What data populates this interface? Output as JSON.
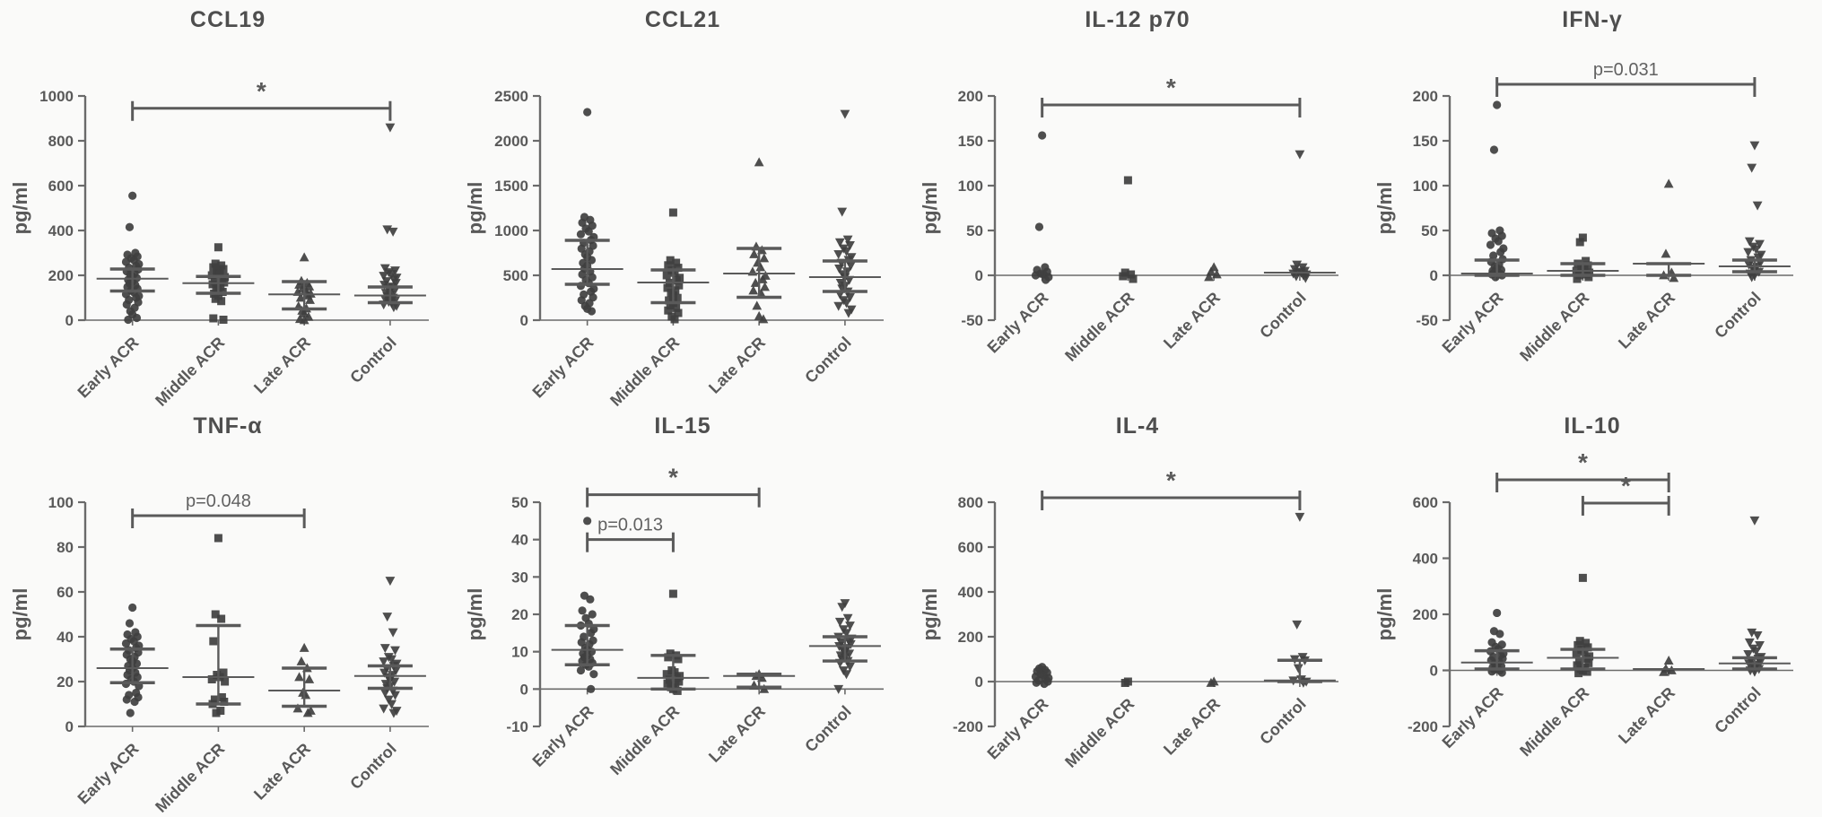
{
  "style": {
    "ink": "#6a6a6a",
    "text": "#595959",
    "marker": "#3f3f3f",
    "bracket": "#5a5a5a",
    "background": "#fafaf9"
  },
  "figure": {
    "ylabel": "pg/ml",
    "categories": [
      "Early ACR",
      "Middle ACR",
      "Late ACR",
      "Control"
    ]
  },
  "chart_data": [
    {
      "type": "scatter",
      "title": "CCL19",
      "ylabel": "pg/ml",
      "ylim": [
        0,
        1000
      ],
      "yticks": [
        0,
        200,
        400,
        600,
        800,
        1000
      ],
      "categories": [
        "Early ACR",
        "Middle ACR",
        "Late ACR",
        "Control"
      ],
      "groups": [
        {
          "name": "Early ACR",
          "marker": "circle",
          "mean": 185,
          "err_low": 130,
          "err_high": 228,
          "values": [
            555,
            415,
            300,
            292,
            284,
            276,
            268,
            260,
            250,
            242,
            234,
            226,
            218,
            210,
            202,
            195,
            188,
            180,
            172,
            164,
            156,
            148,
            140,
            132,
            124,
            116,
            108,
            100,
            90,
            80,
            70,
            55,
            40,
            25,
            10,
            2
          ]
        },
        {
          "name": "Middle ACR",
          "marker": "square",
          "mean": 165,
          "err_low": 120,
          "err_high": 195,
          "values": [
            325,
            252,
            244,
            236,
            228,
            220,
            210,
            200,
            192,
            184,
            176,
            168,
            160,
            150,
            142,
            134,
            126,
            118,
            108,
            95,
            85,
            8,
            2
          ]
        },
        {
          "name": "Late ACR",
          "marker": "triangle-up",
          "mean": 115,
          "err_low": 50,
          "err_high": 172,
          "values": [
            280,
            175,
            166,
            158,
            150,
            142,
            134,
            126,
            118,
            110,
            100,
            90,
            62,
            52,
            42,
            30,
            15,
            5,
            0
          ]
        },
        {
          "name": "Control",
          "marker": "triangle-down",
          "mean": 110,
          "err_low": 78,
          "err_high": 148,
          "values": [
            860,
            405,
            395,
            232,
            222,
            214,
            206,
            198,
            190,
            182,
            174,
            166,
            158,
            150,
            144,
            138,
            130,
            122,
            114,
            106,
            100,
            94,
            88,
            82,
            76,
            70,
            64,
            58
          ]
        }
      ],
      "significance": [
        {
          "from": 0,
          "to": 3,
          "y": 945,
          "label": "*"
        }
      ]
    },
    {
      "type": "scatter",
      "title": "CCL21",
      "ylabel": "pg/ml",
      "ylim": [
        0,
        2500
      ],
      "yticks": [
        0,
        500,
        1000,
        1500,
        2000,
        2500
      ],
      "categories": [
        "Early ACR",
        "Middle ACR",
        "Late ACR",
        "Control"
      ],
      "groups": [
        {
          "name": "Early ACR",
          "marker": "circle",
          "mean": 570,
          "err_low": 400,
          "err_high": 890,
          "values": [
            2320,
            1150,
            1118,
            1086,
            1054,
            1022,
            990,
            958,
            926,
            894,
            862,
            830,
            798,
            766,
            734,
            702,
            670,
            638,
            606,
            574,
            542,
            510,
            478,
            446,
            414,
            382,
            350,
            318,
            286,
            254,
            222,
            190,
            158,
            126,
            100
          ]
        },
        {
          "name": "Middle ACR",
          "marker": "square",
          "mean": 420,
          "err_low": 195,
          "err_high": 560,
          "values": [
            1200,
            668,
            640,
            612,
            584,
            556,
            528,
            500,
            472,
            444,
            416,
            388,
            360,
            332,
            304,
            276,
            248,
            220,
            192,
            164,
            136,
            108,
            80,
            40,
            10
          ]
        },
        {
          "name": "Late ACR",
          "marker": "triangle-up",
          "mean": 520,
          "err_low": 255,
          "err_high": 800,
          "values": [
            1760,
            820,
            780,
            735,
            690,
            640,
            590,
            540,
            495,
            455,
            415,
            370,
            330,
            295,
            160,
            45,
            10
          ]
        },
        {
          "name": "Control",
          "marker": "triangle-down",
          "mean": 480,
          "err_low": 320,
          "err_high": 660,
          "values": [
            2300,
            1210,
            900,
            868,
            836,
            800,
            768,
            736,
            704,
            672,
            640,
            608,
            576,
            544,
            512,
            480,
            448,
            416,
            384,
            352,
            320,
            288,
            256,
            224,
            192,
            158,
            120,
            80
          ]
        }
      ],
      "significance": []
    },
    {
      "type": "scatter",
      "title": "IL-12 p70",
      "ylabel": "pg/ml",
      "ylim": [
        -50,
        200
      ],
      "yticks": [
        -50,
        0,
        50,
        100,
        150,
        200
      ],
      "categories": [
        "Early ACR",
        "Middle ACR",
        "Late ACR",
        "Control"
      ],
      "groups": [
        {
          "name": "Early ACR",
          "marker": "circle",
          "mean": null,
          "err_low": null,
          "err_high": null,
          "values": [
            156,
            54,
            9,
            6,
            4,
            2,
            1,
            0,
            -2,
            -5
          ]
        },
        {
          "name": "Middle ACR",
          "marker": "square",
          "mean": null,
          "err_low": null,
          "err_high": null,
          "values": [
            106,
            3,
            1,
            -1,
            -4
          ]
        },
        {
          "name": "Late ACR",
          "marker": "triangle-up",
          "mean": null,
          "err_low": null,
          "err_high": null,
          "values": [
            9,
            4,
            1,
            -2
          ]
        },
        {
          "name": "Control",
          "marker": "triangle-down",
          "mean": 3,
          "err_low": null,
          "err_high": null,
          "values": [
            135,
            12,
            9,
            7,
            5,
            4,
            3,
            2,
            1,
            0,
            -1,
            -3
          ]
        }
      ],
      "significance": [
        {
          "from": 0,
          "to": 3,
          "y": 190,
          "label": "*"
        }
      ]
    },
    {
      "type": "scatter",
      "title": "IFN-γ",
      "ylabel": "pg/ml",
      "ylim": [
        -50,
        200
      ],
      "yticks": [
        -50,
        0,
        50,
        100,
        150,
        200
      ],
      "categories": [
        "Early ACR",
        "Middle ACR",
        "Late ACR",
        "Control"
      ],
      "groups": [
        {
          "name": "Early ACR",
          "marker": "circle",
          "mean": 2,
          "err_low": 0,
          "err_high": 17,
          "values": [
            190,
            140,
            50,
            47,
            44,
            41,
            38,
            34,
            30,
            26,
            22,
            18,
            15,
            12,
            10,
            8,
            6,
            5,
            4,
            3,
            2,
            1,
            0,
            -2
          ]
        },
        {
          "name": "Middle ACR",
          "marker": "square",
          "mean": 5,
          "err_low": 0,
          "err_high": 13,
          "values": [
            42,
            37,
            16,
            13,
            11,
            9,
            7,
            5,
            3,
            1,
            0,
            -2,
            -4
          ]
        },
        {
          "name": "Late ACR",
          "marker": "triangle-up",
          "mean": 13,
          "err_low": 0,
          "err_high": 13,
          "values": [
            102,
            24,
            3,
            0,
            -3
          ]
        },
        {
          "name": "Control",
          "marker": "triangle-down",
          "mean": 10,
          "err_low": 4,
          "err_high": 17,
          "values": [
            145,
            120,
            78,
            38,
            35,
            32,
            29,
            26,
            23,
            20,
            17,
            14,
            12,
            10,
            8,
            6,
            4,
            2,
            0,
            -2
          ]
        }
      ],
      "significance": [
        {
          "from": 0,
          "to": 3,
          "y": 213,
          "label": "p=0.031"
        }
      ]
    },
    {
      "type": "scatter",
      "title": "TNF-α",
      "ylabel": "pg/ml",
      "ylim": [
        0,
        100
      ],
      "yticks": [
        0,
        20,
        40,
        60,
        80,
        100
      ],
      "categories": [
        "Early ACR",
        "Middle ACR",
        "Late ACR",
        "Control"
      ],
      "groups": [
        {
          "name": "Early ACR",
          "marker": "circle",
          "mean": 26,
          "err_low": 19.5,
          "err_high": 34.5,
          "values": [
            53,
            46,
            42,
            41,
            40,
            39,
            38,
            37,
            36,
            35,
            34,
            33,
            32,
            31,
            30,
            29,
            28,
            27,
            26,
            25,
            24,
            23,
            22,
            21,
            20,
            19,
            18,
            15,
            14,
            13,
            12,
            11,
            6
          ]
        },
        {
          "name": "Middle ACR",
          "marker": "square",
          "mean": 22,
          "err_low": 10,
          "err_high": 45,
          "values": [
            84,
            50,
            48,
            38,
            24,
            23,
            22,
            21,
            20,
            13,
            12,
            11,
            10,
            7,
            6
          ]
        },
        {
          "name": "Late ACR",
          "marker": "triangle-up",
          "mean": 16,
          "err_low": 9,
          "err_high": 26,
          "values": [
            35,
            29,
            26,
            22,
            21,
            15,
            14,
            8,
            7,
            6
          ]
        },
        {
          "name": "Control",
          "marker": "triangle-down",
          "mean": 22.5,
          "err_low": 17,
          "err_high": 27,
          "values": [
            65,
            49,
            42,
            35,
            34,
            31,
            30,
            29,
            28,
            27,
            26,
            25,
            24,
            23,
            22,
            21,
            20,
            19,
            18,
            17,
            16,
            15,
            14,
            12,
            10,
            8,
            7,
            6
          ]
        }
      ],
      "significance": [
        {
          "from": 0,
          "to": 2,
          "y": 94,
          "label": "p=0.048"
        }
      ]
    },
    {
      "type": "scatter",
      "title": "IL-15",
      "ylabel": "pg/ml",
      "ylim": [
        -10,
        50
      ],
      "yticks": [
        -10,
        0,
        10,
        20,
        30,
        40,
        50
      ],
      "categories": [
        "Early ACR",
        "Middle ACR",
        "Late ACR",
        "Control"
      ],
      "groups": [
        {
          "name": "Early ACR",
          "marker": "circle",
          "mean": 10.5,
          "err_low": 6.5,
          "err_high": 17,
          "values": [
            45,
            25,
            24,
            21,
            20,
            19,
            17.5,
            17,
            16,
            15,
            14,
            13,
            12.5,
            12,
            11,
            10.5,
            10,
            9.5,
            9,
            8.5,
            8,
            7.5,
            7,
            6.5,
            6,
            5,
            4,
            0
          ]
        },
        {
          "name": "Middle ACR",
          "marker": "square",
          "mean": 3,
          "err_low": 0,
          "err_high": 9,
          "values": [
            25.5,
            9.5,
            9,
            8.5,
            8,
            5,
            4.5,
            4,
            3.5,
            3,
            2.5,
            2,
            1.5,
            1,
            0.5,
            0,
            -0.5
          ]
        },
        {
          "name": "Late ACR",
          "marker": "triangle-up",
          "mean": 3.5,
          "err_low": 0.5,
          "err_high": 4,
          "values": [
            4,
            3.5,
            3,
            1,
            0
          ]
        },
        {
          "name": "Control",
          "marker": "triangle-down",
          "mean": 11.5,
          "err_low": 7.5,
          "err_high": 14,
          "values": [
            23,
            22,
            19,
            18,
            17,
            16,
            15,
            14,
            13.5,
            13,
            12.5,
            12,
            11.5,
            11,
            10.5,
            10,
            9.5,
            9,
            8.5,
            8,
            7.5,
            7,
            6,
            5,
            4,
            0
          ]
        }
      ],
      "significance": [
        {
          "from": 0,
          "to": 2,
          "y": 52,
          "label": "*"
        },
        {
          "from": 0,
          "to": 1,
          "y": 40,
          "label": "p=0.013"
        }
      ]
    },
    {
      "type": "scatter",
      "title": "IL-4",
      "ylabel": "pg/ml",
      "ylim": [
        -200,
        800
      ],
      "yticks": [
        -200,
        0,
        200,
        400,
        600,
        800
      ],
      "categories": [
        "Early ACR",
        "Middle ACR",
        "Late ACR",
        "Control"
      ],
      "groups": [
        {
          "name": "Early ACR",
          "marker": "circle",
          "mean": null,
          "err_low": null,
          "err_high": null,
          "values": [
            65,
            58,
            52,
            46,
            40,
            34,
            28,
            22,
            16,
            10,
            5,
            0,
            -5,
            -10
          ]
        },
        {
          "name": "Middle ACR",
          "marker": "square",
          "mean": null,
          "err_low": null,
          "err_high": null,
          "values": [
            0,
            -6
          ]
        },
        {
          "name": "Late ACR",
          "marker": "triangle-up",
          "mean": null,
          "err_low": null,
          "err_high": null,
          "values": [
            0,
            -6
          ]
        },
        {
          "name": "Control",
          "marker": "triangle-down",
          "mean": 5,
          "err_low": 0,
          "err_high": 95,
          "values": [
            735,
            255,
            110,
            100,
            95,
            60,
            10,
            5,
            0,
            -5
          ]
        }
      ],
      "significance": [
        {
          "from": 0,
          "to": 3,
          "y": 820,
          "label": "*"
        }
      ]
    },
    {
      "type": "scatter",
      "title": "IL-10",
      "ylabel": "pg/ml",
      "ylim": [
        -200,
        600
      ],
      "yticks": [
        -200,
        0,
        200,
        400,
        600
      ],
      "categories": [
        "Early ACR",
        "Middle ACR",
        "Late ACR",
        "Control"
      ],
      "groups": [
        {
          "name": "Early ACR",
          "marker": "circle",
          "mean": 28,
          "err_low": 5,
          "err_high": 70,
          "values": [
            205,
            140,
            130,
            100,
            92,
            84,
            76,
            68,
            60,
            54,
            48,
            42,
            36,
            30,
            25,
            20,
            15,
            10,
            6,
            2,
            0,
            -4,
            -8
          ]
        },
        {
          "name": "Middle ACR",
          "marker": "square",
          "mean": 45,
          "err_low": 5,
          "err_high": 75,
          "values": [
            330,
            105,
            98,
            90,
            82,
            74,
            66,
            58,
            50,
            42,
            34,
            26,
            18,
            10,
            5,
            0,
            -5,
            -10
          ]
        },
        {
          "name": "Late ACR",
          "marker": "triangle-up",
          "mean": 5,
          "err_low": null,
          "err_high": null,
          "values": [
            35,
            6,
            0,
            -6
          ]
        },
        {
          "name": "Control",
          "marker": "triangle-down",
          "mean": 25,
          "err_low": 5,
          "err_high": 45,
          "values": [
            535,
            135,
            125,
            100,
            90,
            78,
            68,
            58,
            48,
            42,
            36,
            30,
            25,
            20,
            15,
            10,
            5,
            0,
            -5
          ]
        }
      ],
      "significance": [
        {
          "from": 0,
          "to": 2,
          "y": 680,
          "label": "*"
        },
        {
          "from": 1,
          "to": 2,
          "y": 597,
          "label": "*"
        }
      ]
    }
  ]
}
